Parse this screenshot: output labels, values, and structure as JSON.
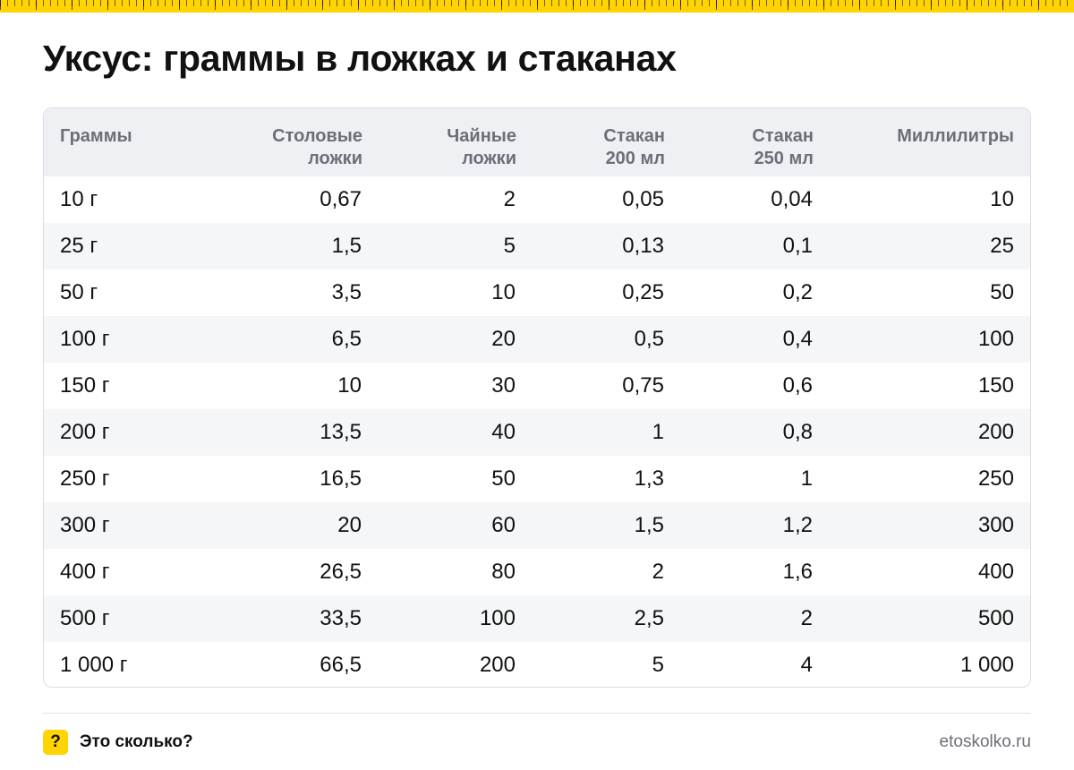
{
  "title": "Уксус: граммы в ложках и стаканах",
  "columns": [
    "Граммы",
    "Столовые\nложки",
    "Чайные\nложки",
    "Стакан\n200 мл",
    "Стакан\n250 мл",
    "Миллилитры"
  ],
  "rows": [
    [
      "10 г",
      "0,67",
      "2",
      "0,05",
      "0,04",
      "10"
    ],
    [
      "25 г",
      "1,5",
      "5",
      "0,13",
      "0,1",
      "25"
    ],
    [
      "50 г",
      "3,5",
      "10",
      "0,25",
      "0,2",
      "50"
    ],
    [
      "100 г",
      "6,5",
      "20",
      "0,5",
      "0,4",
      "100"
    ],
    [
      "150 г",
      "10",
      "30",
      "0,75",
      "0,6",
      "150"
    ],
    [
      "200 г",
      "13,5",
      "40",
      "1",
      "0,8",
      "200"
    ],
    [
      "250 г",
      "16,5",
      "50",
      "1,3",
      "1",
      "250"
    ],
    [
      "300 г",
      "20",
      "60",
      "1,5",
      "1,2",
      "300"
    ],
    [
      "400 г",
      "26,5",
      "80",
      "2",
      "1,6",
      "400"
    ],
    [
      "500 г",
      "33,5",
      "100",
      "2,5",
      "2",
      "500"
    ],
    [
      "1 000 г",
      "66,5",
      "200",
      "5",
      "4",
      "1 000"
    ]
  ],
  "footer": {
    "logo_glyph": "?",
    "brand": "Это сколько?",
    "site": "etoskolko.ru"
  },
  "colors": {
    "accent": "#ffd400",
    "header_bg": "#eef0f4",
    "stripe_bg": "#f5f6f8",
    "muted_text": "#6c6f78"
  },
  "icons": {
    "top_band": "ruler-icon",
    "logo": "question-mark-icon"
  }
}
